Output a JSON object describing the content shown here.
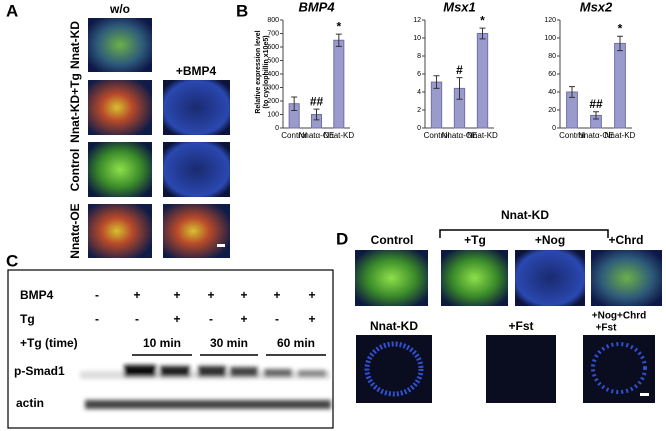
{
  "panel_a": {
    "label": "A",
    "columns": [
      "w/o",
      "+BMP4"
    ],
    "rows": [
      "Nnat-KD",
      "Nnat-KD+Tg",
      "Control",
      "Nnatα-OE"
    ]
  },
  "panel_b": {
    "label": "B",
    "y_label": [
      "Relative expression level",
      "(to cyclophillin x10e5)"
    ]
  },
  "chart_data": [
    {
      "type": "bar",
      "title": "BMP4",
      "categories": [
        "Control",
        "Nnatα-OE",
        "Nnat-KD"
      ],
      "values": [
        180,
        100,
        650
      ],
      "errors": [
        50,
        40,
        45
      ],
      "annotations": [
        null,
        "##",
        "*"
      ],
      "color": "#9a9acc",
      "ylim": [
        0,
        800
      ],
      "yticks": [
        0,
        100,
        200,
        300,
        400,
        500,
        600,
        700,
        800
      ]
    },
    {
      "type": "bar",
      "title": "Msx1",
      "categories": [
        "Control",
        "Nnatα-OE",
        "Nnat-KD"
      ],
      "values": [
        5.1,
        4.4,
        10.5
      ],
      "errors": [
        0.7,
        1.2,
        0.6
      ],
      "annotations": [
        null,
        "#",
        "*"
      ],
      "color": "#9a9acc",
      "ylim": [
        0,
        12
      ],
      "yticks": [
        0,
        2,
        4,
        6,
        8,
        10,
        12
      ]
    },
    {
      "type": "bar",
      "title": "Msx2",
      "categories": [
        "Control",
        "Nnatα-OE",
        "Nnat-KD"
      ],
      "values": [
        40,
        14,
        94
      ],
      "errors": [
        6,
        4,
        8
      ],
      "annotations": [
        null,
        "##",
        "*"
      ],
      "color": "#9a9acc",
      "ylim": [
        0,
        120
      ],
      "yticks": [
        0,
        20,
        40,
        60,
        80,
        100,
        120
      ]
    }
  ],
  "panel_c": {
    "label": "C",
    "rows": [
      {
        "name": "BMP4",
        "cells": [
          "-",
          "+",
          "+",
          "+",
          "+",
          "+",
          "+"
        ]
      },
      {
        "name": "Tg",
        "cells": [
          "-",
          "-",
          "+",
          "-",
          "+",
          "-",
          "+"
        ]
      }
    ],
    "time_label": "+Tg (time)",
    "times": [
      "10 min",
      "30 min",
      "60 min"
    ],
    "blots": [
      "p-Smad1",
      "actin"
    ]
  },
  "panel_d": {
    "label": "D",
    "group": "Nnat-KD",
    "top": [
      "Control",
      "+Tg",
      "+Nog",
      "+Chrd"
    ],
    "bottom": [
      "Nnat-KD",
      "+Fst"
    ],
    "combo": [
      "+Nog+Chrd",
      "+Fst"
    ]
  }
}
